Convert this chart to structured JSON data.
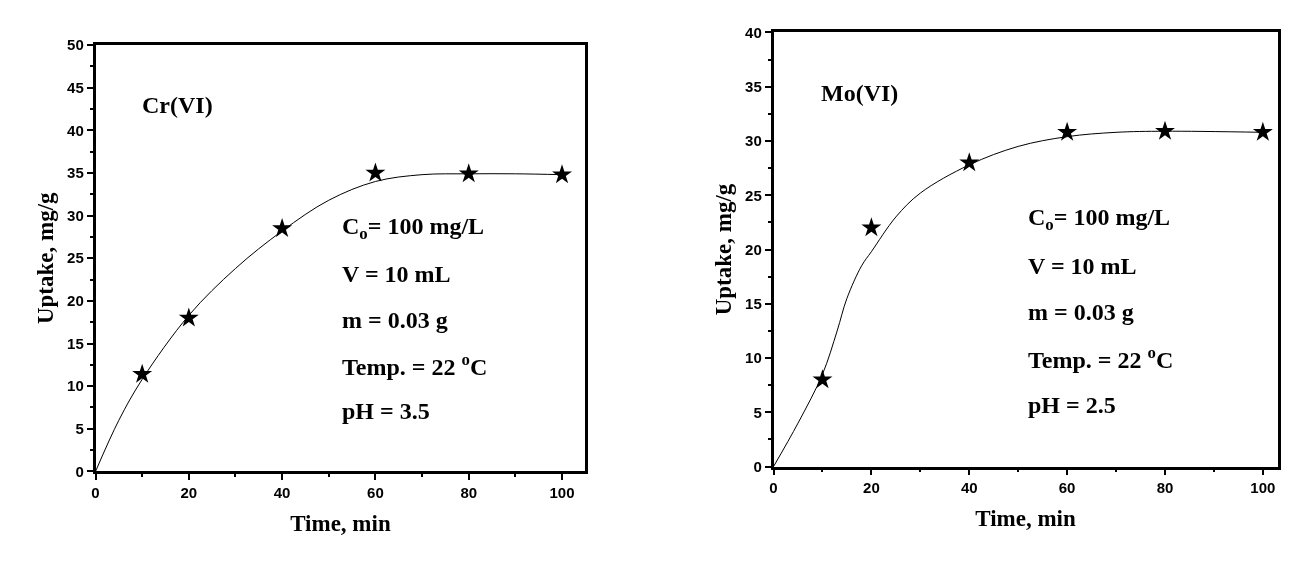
{
  "chart_data": [
    {
      "type": "scatter",
      "xlabel": "Time, min",
      "ylabel": "Uptake, mg/g",
      "xlim": [
        0,
        105
      ],
      "xticks": [
        0,
        20,
        40,
        60,
        80,
        100
      ],
      "ylim": [
        0,
        50
      ],
      "yticks": [
        0,
        5,
        10,
        15,
        20,
        25,
        30,
        35,
        40,
        45,
        50
      ],
      "marker": "star",
      "annotations": [
        "Cr(VI)",
        "C$_{o}$= 100 mg/L",
        "V = 10 mL",
        "m = 0.03 g",
        "Temp. = 22 $^{o}$C",
        "pH = 3.5"
      ],
      "series": [
        {
          "color": "#000000",
          "x": [
            10,
            20,
            40,
            60,
            80,
            100
          ],
          "values": [
            11.4,
            18,
            28.5,
            35,
            34.9,
            34.8
          ]
        },
        {
          "type": "line",
          "color": "#000000",
          "marker": "none",
          "x": [
            0,
            5,
            10,
            20,
            30,
            40,
            50,
            60,
            70,
            80,
            90,
            100
          ],
          "values": [
            0,
            6,
            10.8,
            18.3,
            23.8,
            28.2,
            31.8,
            34,
            34.8,
            34.9,
            34.9,
            34.8
          ]
        }
      ]
    },
    {
      "type": "scatter",
      "xlabel": "Time, min",
      "ylabel": "Uptake, mg/g",
      "xlim": [
        0,
        103
      ],
      "xticks": [
        0,
        20,
        40,
        60,
        80,
        100
      ],
      "ylim": [
        0,
        40
      ],
      "yticks": [
        0,
        5,
        10,
        15,
        20,
        25,
        30,
        35,
        40
      ],
      "marker": "star",
      "annotations": [
        "Mo(VI)",
        "C$_{o}$= 100 mg/L",
        "V = 10 mL",
        "m = 0.03 g",
        "Temp. = 22 $^{o}$C",
        "pH = 2.5"
      ],
      "series": [
        {
          "color": "#000000",
          "x": [
            10,
            20,
            40,
            60,
            80,
            100
          ],
          "values": [
            8,
            22,
            28,
            30.8,
            30.9,
            30.8
          ]
        },
        {
          "type": "line",
          "color": "#000000",
          "marker": "none",
          "x": [
            0,
            5,
            10,
            13,
            15,
            18,
            20,
            25,
            30,
            40,
            50,
            60,
            70,
            80,
            100
          ],
          "values": [
            0,
            4,
            8.5,
            12.5,
            15.5,
            18.5,
            19.8,
            23,
            25.2,
            27.8,
            29.5,
            30.4,
            30.8,
            30.9,
            30.8
          ]
        }
      ]
    }
  ]
}
